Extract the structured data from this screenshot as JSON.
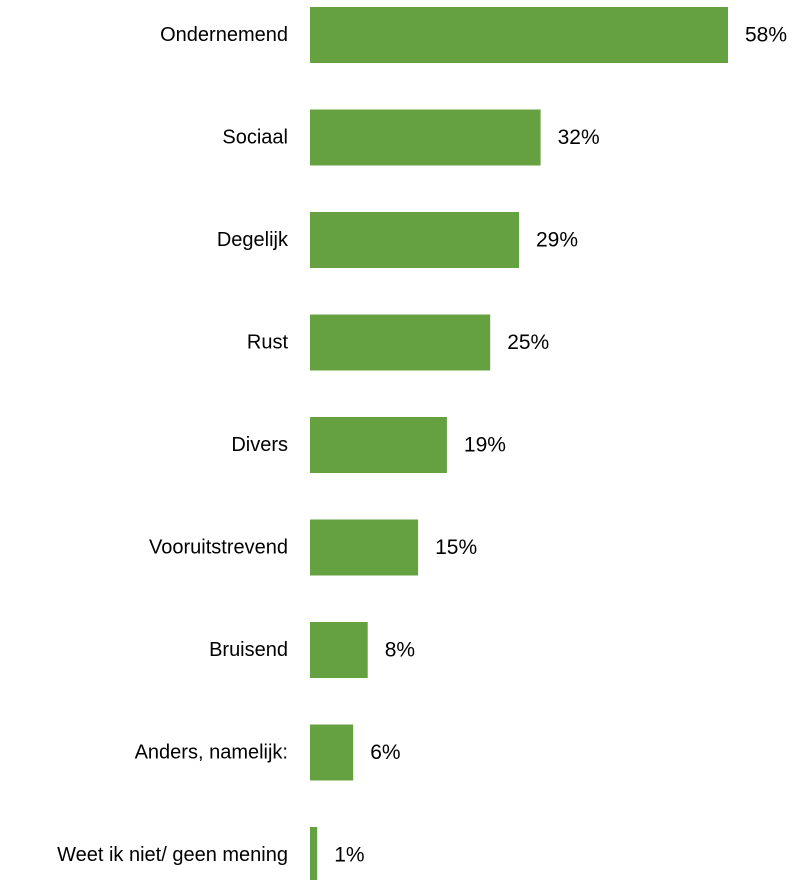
{
  "chart_data": {
    "type": "bar",
    "orientation": "horizontal",
    "categories": [
      "Ondernemend",
      "Sociaal",
      "Degelijk",
      "Rust",
      "Divers",
      "Vooruitstrevend",
      "Bruisend",
      "Anders, namelijk:",
      "Weet ik niet/ geen mening"
    ],
    "values": [
      58,
      32,
      29,
      25,
      19,
      15,
      8,
      6,
      1
    ],
    "value_labels": [
      "58%",
      "32%",
      "29%",
      "25%",
      "19%",
      "15%",
      "8%",
      "6%",
      "1%"
    ],
    "unit": "%",
    "xlim": [
      0,
      58
    ],
    "grid": false,
    "legend": "none",
    "bar_color": "#65a041"
  }
}
